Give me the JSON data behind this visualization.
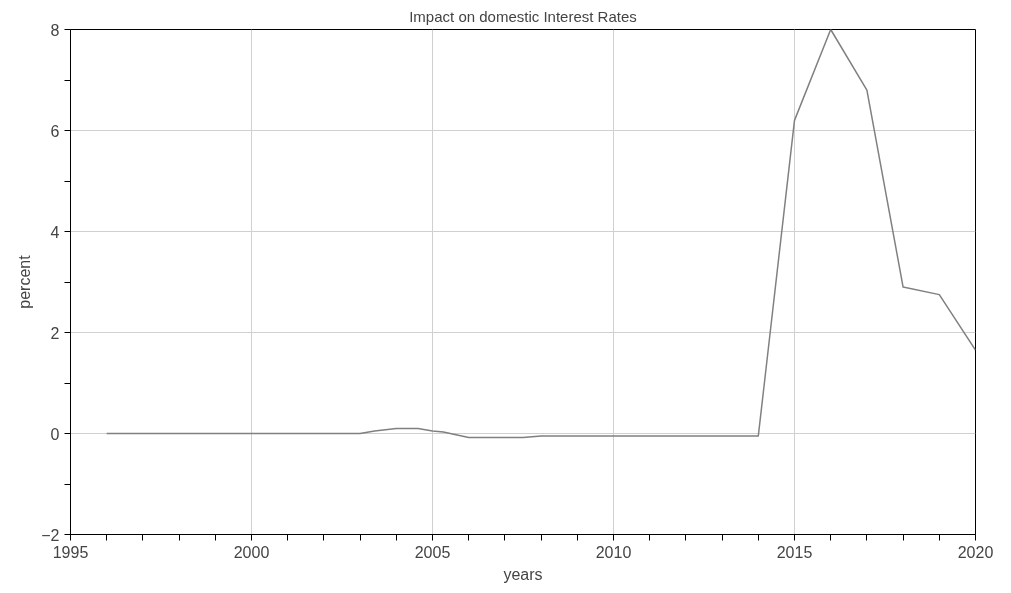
{
  "chart_data": {
    "type": "line",
    "title": "Impact on domestic Interest Rates",
    "xlabel": "years",
    "ylabel": "percent",
    "x": [
      1996,
      2003,
      2003.4,
      2004,
      2004.6,
      2005,
      2005.3,
      2006,
      2007.5,
      2008,
      2014,
      2015,
      2016,
      2017,
      2018,
      2019,
      2020
    ],
    "series": [
      {
        "color": "#808080",
        "values": [
          0,
          0,
          0.05,
          0.1,
          0.1,
          0.05,
          0.03,
          -0.08,
          -0.08,
          -0.05,
          -0.05,
          6.2,
          8,
          6.8,
          2.9,
          2.75,
          1.65
        ]
      }
    ],
    "xlim": [
      1995,
      2020
    ],
    "ylim": [
      -2,
      8
    ],
    "xticks": [
      1995,
      {
        "value": 1996,
        "label": null
      },
      {
        "value": 1997,
        "label": null
      },
      {
        "value": 1998,
        "label": null
      },
      {
        "value": 1999,
        "label": null
      },
      2000,
      {
        "value": 2001,
        "label": null
      },
      {
        "value": 2002,
        "label": null
      },
      {
        "value": 2003,
        "label": null
      },
      {
        "value": 2004,
        "label": null
      },
      2005,
      {
        "value": 2006,
        "label": null
      },
      {
        "value": 2007,
        "label": null
      },
      {
        "value": 2008,
        "label": null
      },
      {
        "value": 2009,
        "label": null
      },
      2010,
      {
        "value": 2011,
        "label": null
      },
      {
        "value": 2012,
        "label": null
      },
      {
        "value": 2013,
        "label": null
      },
      {
        "value": 2014,
        "label": null
      },
      2015,
      {
        "value": 2016,
        "label": null
      },
      {
        "value": 2017,
        "label": null
      },
      {
        "value": 2018,
        "label": null
      },
      {
        "value": 2019,
        "label": null
      },
      2020
    ],
    "yticks": [
      {
        "value": -2,
        "label": "−2"
      },
      {
        "value": -1,
        "label": null
      },
      0,
      {
        "value": 1,
        "label": null
      },
      2,
      {
        "value": 3,
        "label": null
      },
      4,
      {
        "value": 5,
        "label": null
      },
      6,
      {
        "value": 7,
        "label": null
      },
      8
    ],
    "grid": true,
    "marker": "none",
    "line_style": "solid"
  }
}
